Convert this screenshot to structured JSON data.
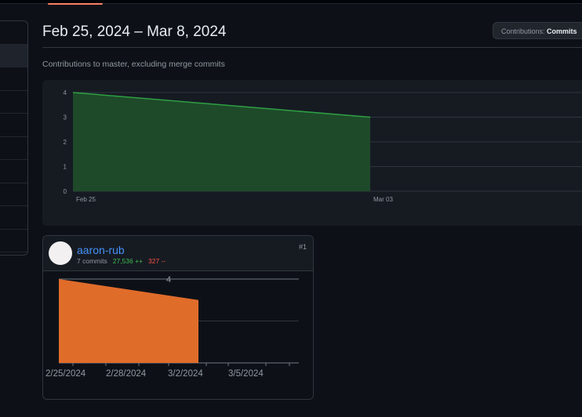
{
  "page": {
    "title": "Feb 25, 2024 – Mar 8, 2024",
    "dropdown_label": "Contributions: ",
    "dropdown_value": "Commits",
    "subtitle": "Contributions to master, excluding merge commits"
  },
  "colors": {
    "main_area": "#1e4a2a",
    "main_stroke": "#2ea043",
    "contributor_area": "#e06c2a",
    "additions": "#3fb950",
    "deletions": "#f85149",
    "link": "#4493f8",
    "active_tab": "#f78166"
  },
  "chart_data": [
    {
      "type": "area",
      "x": [
        "Feb 25",
        "Mar 03"
      ],
      "values": [
        4,
        3
      ],
      "xticks": [
        "Feb 25",
        "Mar 03"
      ],
      "yticks": [
        "0",
        "1",
        "2",
        "3",
        "4"
      ],
      "ylim": [
        0,
        4
      ],
      "grid": true
    },
    {
      "type": "area",
      "x": [
        "2/25/2024",
        "3/2/2024"
      ],
      "values": [
        4,
        3
      ],
      "xticks": [
        "2/25/2024",
        "2/28/2024",
        "3/2/2024",
        "3/5/2024"
      ],
      "annotation": "4",
      "ylim": [
        0,
        4
      ]
    }
  ],
  "contributor": {
    "name": "aaron-rub",
    "commits": "7 commits",
    "additions": "27,536 ++",
    "deletions": "327 --",
    "rank": "#1"
  }
}
